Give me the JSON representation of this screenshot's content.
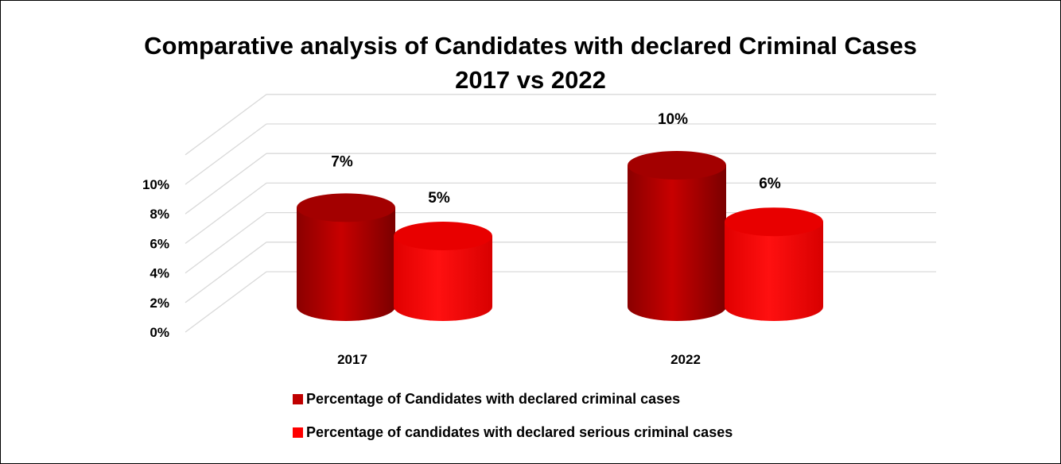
{
  "chart_data": {
    "type": "bar",
    "style": "3d-cylinder",
    "title": "Comparative analysis of Candidates with declared Criminal Cases 2017 vs 2022",
    "title_lines": [
      "Comparative analysis of Candidates with declared Criminal Cases",
      "2017 vs 2022"
    ],
    "categories": [
      "2017",
      "2022"
    ],
    "series": [
      {
        "name": "Percentage of Candidates with declared criminal cases",
        "values": [
          7,
          10
        ],
        "labels": [
          "7%",
          "10%"
        ],
        "color": "#c00000"
      },
      {
        "name": "Percentage of candidates with declared serious criminal cases",
        "values": [
          5,
          6
        ],
        "labels": [
          "5%",
          "6%"
        ],
        "color": "#ff0000"
      }
    ],
    "y_ticks": [
      "0%",
      "2%",
      "4%",
      "6%",
      "8%",
      "10%"
    ],
    "ylim": [
      0,
      10
    ],
    "xlabel": "",
    "ylabel": "",
    "grid": true,
    "legend_position": "bottom"
  }
}
